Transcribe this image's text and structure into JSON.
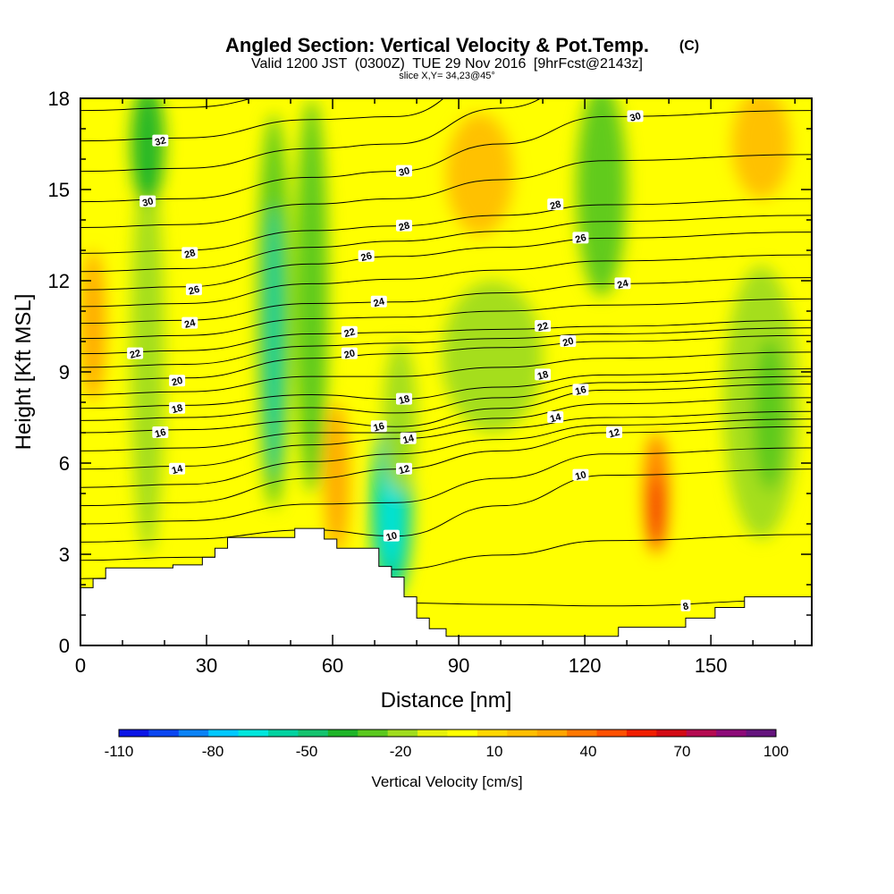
{
  "chart_data": {
    "type": "heatmap",
    "title": "Angled Section: Vertical Velocity & Pot.Temp.",
    "title_unit": "(C)",
    "subtitle_parts": [
      "Valid 1200 JST",
      "(0300Z)",
      "TUE 29 Nov 2016",
      "[9hrFcst@2143z]"
    ],
    "slice_label": "slice X,Y= 34,23@45°",
    "xlabel": "Distance [nm]",
    "ylabel": "Height [Kft MSL]",
    "xlim": [
      0,
      174
    ],
    "ylim": [
      0,
      18
    ],
    "x_ticks": [
      0,
      30,
      60,
      90,
      120,
      150
    ],
    "y_ticks": [
      0,
      3,
      6,
      9,
      12,
      15,
      18
    ],
    "grid": false,
    "colorbar": {
      "label": "Vertical Velocity [cm/s]",
      "tick_labels": [
        "-110",
        "-80",
        "-50",
        "-20",
        "10",
        "40",
        "70",
        "100"
      ],
      "tick_values": [
        -110,
        -80,
        -50,
        -20,
        10,
        40,
        70,
        100
      ],
      "range": [
        -110,
        100
      ],
      "colors": [
        "#0a14e6",
        "#0a46f0",
        "#0a82f5",
        "#00c8ff",
        "#00e6dc",
        "#00d2a0",
        "#14c36e",
        "#1eb428",
        "#5ac81e",
        "#a0dc1e",
        "#e6f00a",
        "#ffff00",
        "#ffd700",
        "#ffbe00",
        "#ffa500",
        "#ff7800",
        "#ff5000",
        "#f01e00",
        "#d20a14",
        "#b40a50",
        "#8c0a78",
        "#64147d"
      ]
    },
    "terrain": [
      [
        0,
        1.9
      ],
      [
        3,
        1.9
      ],
      [
        3,
        2.2
      ],
      [
        6,
        2.2
      ],
      [
        6,
        2.55
      ],
      [
        22,
        2.55
      ],
      [
        22,
        2.65
      ],
      [
        29,
        2.65
      ],
      [
        29,
        2.9
      ],
      [
        32,
        2.9
      ],
      [
        32,
        3.2
      ],
      [
        35,
        3.2
      ],
      [
        35,
        3.55
      ],
      [
        51,
        3.55
      ],
      [
        51,
        3.85
      ],
      [
        58,
        3.85
      ],
      [
        58,
        3.5
      ],
      [
        61,
        3.5
      ],
      [
        61,
        3.2
      ],
      [
        71,
        3.2
      ],
      [
        71,
        2.6
      ],
      [
        74,
        2.6
      ],
      [
        74,
        2.25
      ],
      [
        77,
        2.25
      ],
      [
        77,
        1.6
      ],
      [
        80,
        1.6
      ],
      [
        80,
        0.9
      ],
      [
        83,
        0.9
      ],
      [
        83,
        0.55
      ],
      [
        87,
        0.55
      ],
      [
        87,
        0.3
      ],
      [
        128,
        0.3
      ],
      [
        128,
        0.6
      ],
      [
        144,
        0.6
      ],
      [
        144,
        0.9
      ],
      [
        151,
        0.9
      ],
      [
        151,
        1.25
      ],
      [
        158,
        1.25
      ],
      [
        158,
        1.6
      ],
      [
        174,
        1.6
      ]
    ],
    "velocity_features": [
      {
        "x": 16,
        "y": 9.5,
        "rx": 4,
        "ry": 6.5,
        "value": -18
      },
      {
        "x": 16,
        "y": 16.5,
        "rx": 4,
        "ry": 2,
        "value": -35
      },
      {
        "x": 46,
        "y": 11,
        "rx": 4,
        "ry": 6.5,
        "value": -30
      },
      {
        "x": 46,
        "y": 10,
        "rx": 2,
        "ry": 4.5,
        "value": -55
      },
      {
        "x": 55,
        "y": 11.5,
        "rx": 4,
        "ry": 6.5,
        "value": -32
      },
      {
        "x": 74,
        "y": 4.5,
        "rx": 5,
        "ry": 3,
        "value": -55
      },
      {
        "x": 74,
        "y": 4.2,
        "rx": 2.5,
        "ry": 1.6,
        "value": -65
      },
      {
        "x": 76,
        "y": 7.5,
        "rx": 4,
        "ry": 2.5,
        "value": -22
      },
      {
        "x": 98,
        "y": 9.5,
        "rx": 12,
        "ry": 2.5,
        "value": -16
      },
      {
        "x": 124,
        "y": 15,
        "rx": 6,
        "ry": 3.5,
        "value": -25
      },
      {
        "x": 162,
        "y": 8,
        "rx": 9,
        "ry": 4.5,
        "value": -20
      },
      {
        "x": 164,
        "y": 7.6,
        "rx": 4,
        "ry": 2.5,
        "value": -30
      },
      {
        "x": 3,
        "y": 10.5,
        "rx": 3,
        "ry": 2.5,
        "value": 30
      },
      {
        "x": 61,
        "y": 5.5,
        "rx": 3,
        "ry": 2.5,
        "value": 28
      },
      {
        "x": 137,
        "y": 5,
        "rx": 3,
        "ry": 2,
        "value": 40
      },
      {
        "x": 137,
        "y": 4.4,
        "rx": 1.5,
        "ry": 1.2,
        "value": 60
      },
      {
        "x": 95,
        "y": 15.5,
        "rx": 8,
        "ry": 2,
        "value": 22
      },
      {
        "x": 162,
        "y": 16.5,
        "rx": 7,
        "ry": 1.8,
        "value": 20
      }
    ],
    "contour_interval": 1,
    "contour_labels": [
      {
        "value": "32",
        "x": 19,
        "y": 16.6
      },
      {
        "value": "30",
        "x": 16,
        "y": 14.6
      },
      {
        "value": "28",
        "x": 26,
        "y": 12.9
      },
      {
        "value": "26",
        "x": 27,
        "y": 11.7
      },
      {
        "value": "24",
        "x": 26,
        "y": 10.6
      },
      {
        "value": "22",
        "x": 13,
        "y": 9.6
      },
      {
        "value": "20",
        "x": 23,
        "y": 8.7
      },
      {
        "value": "18",
        "x": 23,
        "y": 7.8
      },
      {
        "value": "16",
        "x": 19,
        "y": 7.0
      },
      {
        "value": "14",
        "x": 23,
        "y": 5.8
      },
      {
        "value": "30",
        "x": 77,
        "y": 15.6
      },
      {
        "value": "28",
        "x": 77,
        "y": 13.8
      },
      {
        "value": "26",
        "x": 68,
        "y": 12.8
      },
      {
        "value": "24",
        "x": 71,
        "y": 11.3
      },
      {
        "value": "22",
        "x": 64,
        "y": 10.3
      },
      {
        "value": "20",
        "x": 64,
        "y": 9.6
      },
      {
        "value": "18",
        "x": 77,
        "y": 8.1
      },
      {
        "value": "16",
        "x": 71,
        "y": 7.2
      },
      {
        "value": "14",
        "x": 78,
        "y": 6.8
      },
      {
        "value": "12",
        "x": 77,
        "y": 5.8
      },
      {
        "value": "10",
        "x": 74,
        "y": 3.6
      },
      {
        "value": "30",
        "x": 132,
        "y": 17.4
      },
      {
        "value": "28",
        "x": 113,
        "y": 14.5
      },
      {
        "value": "26",
        "x": 119,
        "y": 13.4
      },
      {
        "value": "24",
        "x": 129,
        "y": 11.9
      },
      {
        "value": "22",
        "x": 110,
        "y": 10.5
      },
      {
        "value": "20",
        "x": 116,
        "y": 10.0
      },
      {
        "value": "18",
        "x": 110,
        "y": 8.9
      },
      {
        "value": "16",
        "x": 119,
        "y": 8.4
      },
      {
        "value": "14",
        "x": 113,
        "y": 7.5
      },
      {
        "value": "12",
        "x": 127,
        "y": 7.0
      },
      {
        "value": "10",
        "x": 119,
        "y": 5.6
      },
      {
        "value": "8",
        "x": 144,
        "y": 1.3
      }
    ]
  }
}
